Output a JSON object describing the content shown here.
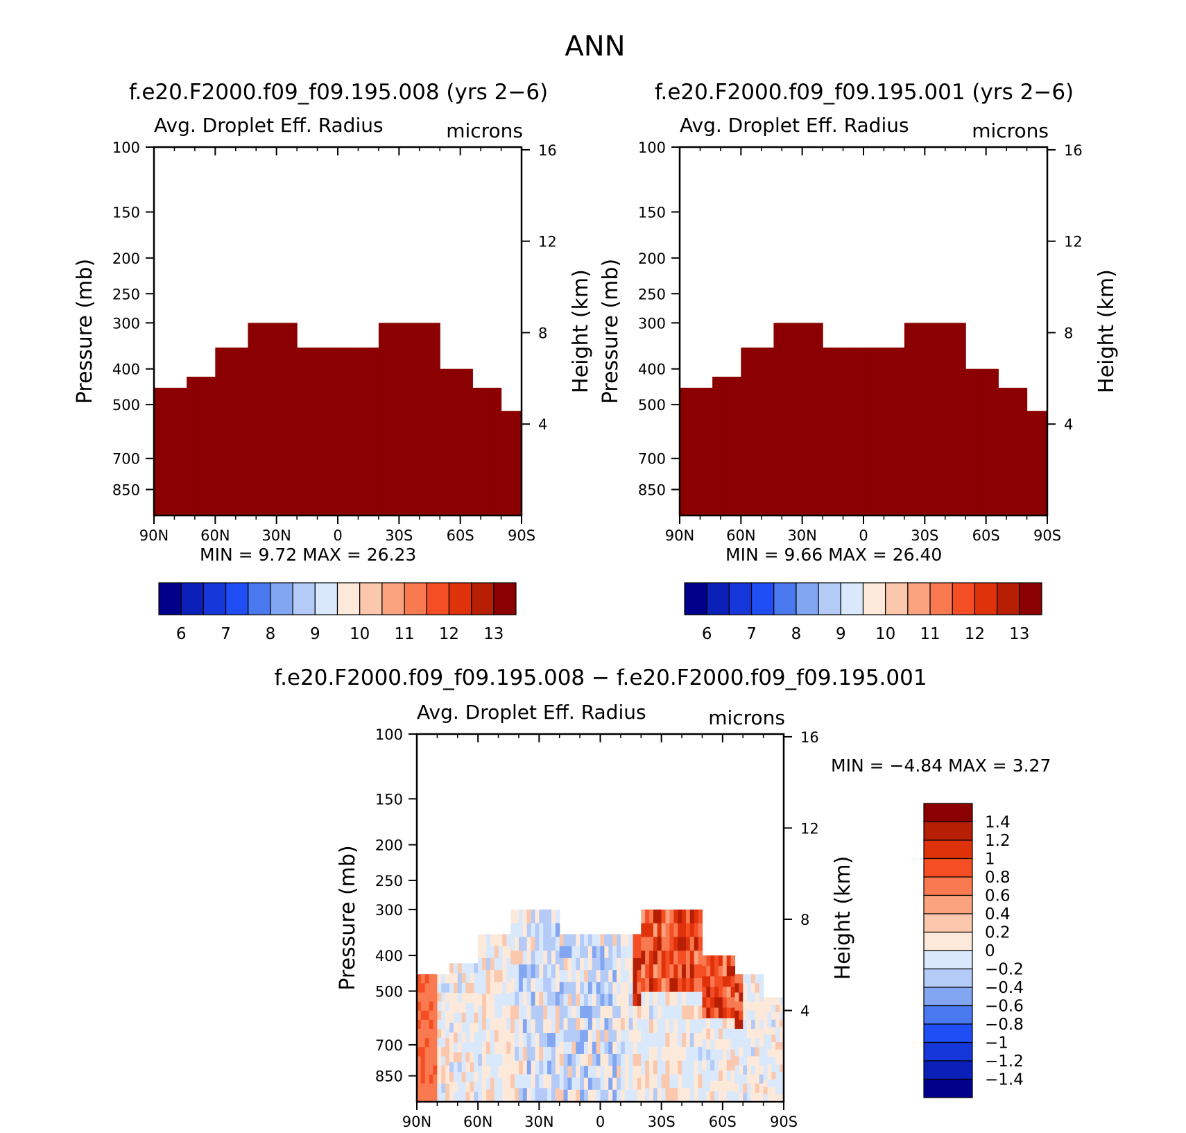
{
  "figure_title": "ANN",
  "chart_data": [
    {
      "type": "heatmap",
      "title": "f.e20.F2000.f09_f09.195.008 (yrs 2−6)",
      "variable": "Avg. Droplet Eff. Radius",
      "units": "microns",
      "xlabel": "",
      "ylabel": "Pressure (mb)",
      "ylabel_right": "Height (km)",
      "x_ticks": [
        "90N",
        "60N",
        "30N",
        "0",
        "30S",
        "60S",
        "90S"
      ],
      "x_range": [
        90,
        -90
      ],
      "y_scale": "log",
      "y_range": [
        100,
        1000
      ],
      "y_ticks": [
        100,
        150,
        200,
        250,
        300,
        400,
        500,
        700,
        850
      ],
      "height_ticks": [
        16,
        12,
        8,
        4
      ],
      "min_label": "MIN =",
      "min_value": "9.72",
      "max_label": "MAX =",
      "max_value": "26.23",
      "cloud_top_profile": [
        [
          90,
          450
        ],
        [
          75,
          420
        ],
        [
          60,
          350
        ],
        [
          45,
          300
        ],
        [
          30,
          300
        ],
        [
          20,
          350
        ],
        [
          0,
          350
        ],
        [
          -20,
          300
        ],
        [
          -35,
          300
        ],
        [
          -50,
          400
        ],
        [
          -65,
          450
        ],
        [
          -80,
          520
        ],
        [
          -90,
          540
        ]
      ],
      "dominant_value": 13,
      "colorbar_labels": [
        "6",
        "7",
        "8",
        "9",
        "10",
        "11",
        "12",
        "13"
      ]
    },
    {
      "type": "heatmap",
      "title": "f.e20.F2000.f09_f09.195.001 (yrs 2−6)",
      "variable": "Avg. Droplet Eff. Radius",
      "units": "microns",
      "xlabel": "",
      "ylabel": "Pressure (mb)",
      "ylabel_right": "Height (km)",
      "x_ticks": [
        "90N",
        "60N",
        "30N",
        "0",
        "30S",
        "60S",
        "90S"
      ],
      "x_range": [
        90,
        -90
      ],
      "y_scale": "log",
      "y_range": [
        100,
        1000
      ],
      "y_ticks": [
        100,
        150,
        200,
        250,
        300,
        400,
        500,
        700,
        850
      ],
      "height_ticks": [
        16,
        12,
        8,
        4
      ],
      "min_label": "MIN =",
      "min_value": "9.66",
      "max_label": "MAX =",
      "max_value": "26.40",
      "cloud_top_profile": [
        [
          90,
          450
        ],
        [
          75,
          420
        ],
        [
          60,
          350
        ],
        [
          45,
          300
        ],
        [
          30,
          300
        ],
        [
          20,
          350
        ],
        [
          0,
          350
        ],
        [
          -20,
          300
        ],
        [
          -35,
          300
        ],
        [
          -50,
          400
        ],
        [
          -65,
          450
        ],
        [
          -80,
          520
        ],
        [
          -90,
          540
        ]
      ],
      "dominant_value": 13,
      "colorbar_labels": [
        "6",
        "7",
        "8",
        "9",
        "10",
        "11",
        "12",
        "13"
      ]
    },
    {
      "type": "heatmap",
      "title": "f.e20.F2000.f09_f09.195.008 − f.e20.F2000.f09_f09.195.001",
      "variable": "Avg. Droplet Eff. Radius",
      "units": "microns",
      "xlabel": "",
      "ylabel": "Pressure (mb)",
      "ylabel_right": "Height (km)",
      "x_ticks": [
        "90N",
        "60N",
        "30N",
        "0",
        "30S",
        "60S",
        "90S"
      ],
      "x_range": [
        90,
        -90
      ],
      "y_scale": "log",
      "y_range": [
        100,
        1000
      ],
      "y_ticks": [
        100,
        150,
        200,
        250,
        300,
        400,
        500,
        700,
        850
      ],
      "height_ticks": [
        16,
        12,
        8,
        4
      ],
      "min_label": "MIN =",
      "min_value": "−4.84",
      "max_label": "MAX =",
      "max_value": "3.27",
      "cloud_top_profile": [
        [
          90,
          450
        ],
        [
          75,
          420
        ],
        [
          60,
          350
        ],
        [
          45,
          300
        ],
        [
          30,
          300
        ],
        [
          20,
          350
        ],
        [
          0,
          350
        ],
        [
          -20,
          300
        ],
        [
          -35,
          300
        ],
        [
          -50,
          400
        ],
        [
          -65,
          450
        ],
        [
          -80,
          520
        ],
        [
          -90,
          540
        ]
      ],
      "colorbar_labels": [
        "1.4",
        "1.2",
        "1",
        "0.8",
        "0.6",
        "0.4",
        "0.2",
        "0",
        "−0.2",
        "−0.4",
        "−0.6",
        "−0.8",
        "−1",
        "−1.2",
        "−1.4"
      ]
    }
  ],
  "colors": {
    "palette": [
      "#00008b",
      "#0a20b8",
      "#1536d8",
      "#1f4ef5",
      "#4a78ee",
      "#82a6f2",
      "#b4cbf7",
      "#d9e8fb",
      "#fde9da",
      "#fcc8ad",
      "#fba37e",
      "#f97a51",
      "#f54e24",
      "#e0320a",
      "#b71f05",
      "#8b0000"
    ]
  }
}
